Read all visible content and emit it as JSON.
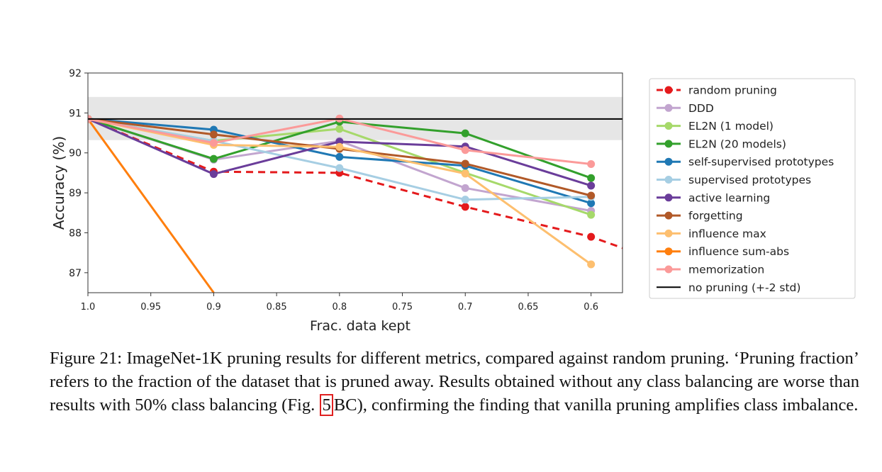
{
  "chart_data": {
    "type": "line",
    "xlabel": "Frac. data kept",
    "ylabel": "Accuracy (%)",
    "xlim": [
      1.0,
      0.575
    ],
    "ylim": [
      86.5,
      92
    ],
    "x_ticks": [
      "1.0",
      "0.95",
      "0.9",
      "0.85",
      "0.8",
      "0.75",
      "0.7",
      "0.65",
      "0.6"
    ],
    "y_ticks": [
      "87",
      "88",
      "89",
      "90",
      "91",
      "92"
    ],
    "no_pruning_band": [
      90.32,
      91.4
    ],
    "x": [
      1.0,
      0.9,
      0.8,
      0.7,
      0.6
    ],
    "legend_position": "outside-right",
    "series": [
      {
        "name": "random pruning",
        "color": "#e41a1c",
        "dashed": true,
        "x": [
          1.0,
          0.9,
          0.8,
          0.7,
          0.6,
          0.575
        ],
        "values": [
          90.85,
          89.53,
          89.5,
          88.65,
          87.9,
          87.62
        ],
        "markers": [
          true,
          true,
          true,
          true,
          true,
          false
        ]
      },
      {
        "name": "DDD",
        "color": "#c2a5cf",
        "values": [
          90.85,
          89.83,
          90.3,
          89.12,
          88.55
        ]
      },
      {
        "name": "EL2N (1 model)",
        "color": "#a6d96a",
        "values": [
          90.85,
          90.3,
          90.6,
          89.5,
          88.45
        ]
      },
      {
        "name": "EL2N (20 models)",
        "color": "#33a02c",
        "values": [
          90.85,
          89.85,
          90.78,
          90.49,
          89.37
        ]
      },
      {
        "name": "self-supervised prototypes",
        "color": "#1f78b4",
        "values": [
          90.85,
          90.58,
          89.9,
          89.68,
          88.74
        ]
      },
      {
        "name": "supervised prototypes",
        "color": "#a6cee3",
        "values": [
          90.85,
          90.3,
          89.62,
          88.83,
          88.9
        ]
      },
      {
        "name": "active learning",
        "color": "#6a3d9a",
        "values": [
          90.85,
          89.47,
          90.28,
          90.16,
          89.18
        ]
      },
      {
        "name": "forgetting",
        "color": "#b15928",
        "values": [
          90.85,
          90.46,
          90.1,
          89.73,
          88.93
        ]
      },
      {
        "name": "influence max",
        "color": "#fdbf6f",
        "values": [
          90.85,
          90.2,
          90.15,
          89.48,
          87.21
        ]
      },
      {
        "name": "influence sum-abs",
        "color": "#ff7f0e",
        "x": [
          1.0,
          0.9
        ],
        "values": [
          90.85,
          86.5
        ],
        "markers": [
          true,
          false
        ]
      },
      {
        "name": "memorization",
        "color": "#fb9a99",
        "values": [
          90.85,
          90.25,
          90.86,
          90.07,
          89.72
        ]
      },
      {
        "name": "no pruning (+-2 std)",
        "color": "#000000",
        "hline": 90.85
      }
    ]
  },
  "caption": {
    "pre": "Figure 21: ImageNet-1K pruning results for different metrics, compared against random pruning. ‘Pruning fraction’ refers to the fraction of the dataset that is pruned away. Results obtained without any class balancing are worse than results with 50% class balancing (Fig. ",
    "ref": "5",
    "post": "BC), confirming the finding that vanilla pruning amplifies class imbalance."
  }
}
